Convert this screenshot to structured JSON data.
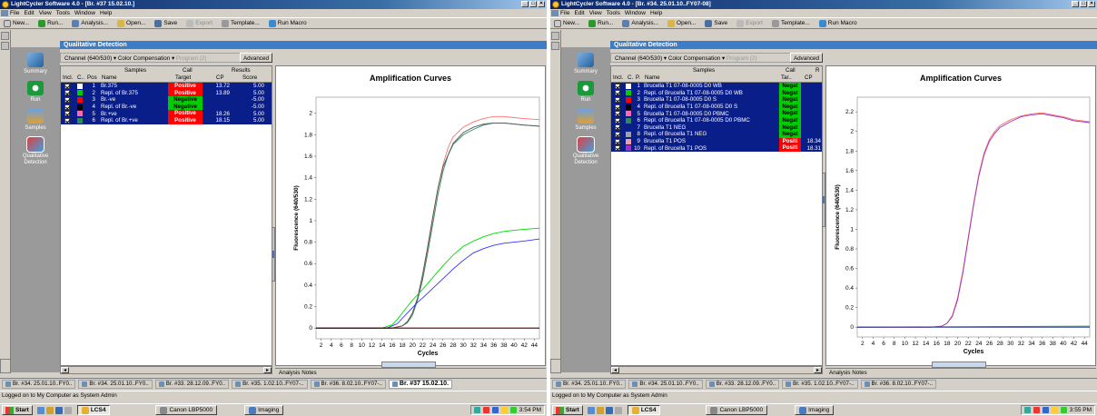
{
  "windows": [
    {
      "title": "LightCycler Software 4.0 - [Br. #37 15.02.10.]",
      "menu": [
        "File",
        "Edit",
        "View",
        "Tools",
        "Window",
        "Help"
      ],
      "toolbar": [
        {
          "icon": "new-icon",
          "label": "New..."
        },
        {
          "icon": "run-icon",
          "label": "Run..."
        },
        {
          "icon": "analysis-icon",
          "label": "Analysis..."
        },
        {
          "icon": "open-icon",
          "label": "Open..."
        },
        {
          "icon": "save-icon",
          "label": "Save"
        },
        {
          "icon": "export-icon",
          "label": "Export",
          "disabled": true
        },
        {
          "icon": "template-icon",
          "label": "Template..."
        },
        {
          "icon": "run-macro-icon",
          "label": "Run Macro"
        }
      ],
      "nav": [
        "Summary",
        "Run",
        "Samples",
        "Qualitative Detection"
      ],
      "page_title": "Qualitative Detection",
      "channel": "Channel (640/530)",
      "color_comp": "Color Compensation",
      "program": "Program (2)",
      "advanced": "Advanced",
      "headers": {
        "samples": "Samples",
        "call": "Call",
        "results": "Results",
        "incl": "Incl.",
        "c": "C..",
        "pos": "Pos",
        "name": "Name",
        "target": "Target",
        "cp": "CP",
        "score": "Score"
      },
      "rows": [
        {
          "pos": "1",
          "name": "Br.375",
          "color": "#ffffff",
          "call": "Positive",
          "cp": "13.72",
          "score": "5.00"
        },
        {
          "pos": "2",
          "name": "Repl. of Br.375",
          "color": "#00cc00",
          "call": "Positive",
          "cp": "13.89",
          "score": "5.00"
        },
        {
          "pos": "3",
          "name": "Br.-ve",
          "color": "#ff0000",
          "call": "Negative",
          "cp": "",
          "score": "-5.00"
        },
        {
          "pos": "4",
          "name": "Repl. of Br.-ve",
          "color": "#000000",
          "call": "Negative",
          "cp": "",
          "score": "-5.00"
        },
        {
          "pos": "5",
          "name": "Br.+ve",
          "color": "#ff69b4",
          "call": "Positive",
          "cp": "18.26",
          "score": "5.00"
        },
        {
          "pos": "6",
          "name": "Repl. of Br.+ve",
          "color": "#2e8b57",
          "call": "Positive",
          "cp": "18.15",
          "score": "5.00"
        }
      ],
      "chart_data": {
        "type": "line",
        "title": "Amplification Curves",
        "xlabel": "Cycles",
        "ylabel": "Fluorescence (640/530)",
        "xticks": [
          2,
          4,
          6,
          8,
          10,
          12,
          14,
          16,
          18,
          20,
          22,
          24,
          26,
          28,
          30,
          32,
          34,
          36,
          38,
          40,
          42,
          44
        ],
        "yticks": [
          0,
          0.2,
          0.4,
          0.6,
          0.8,
          1,
          1.2,
          1.4,
          1.6,
          1.8,
          2
        ],
        "xlim": [
          1,
          45
        ],
        "ylim": [
          -0.1,
          2.15
        ],
        "series": [
          {
            "color": "#ff7070",
            "x": [
              1,
              14,
              16,
              18,
              19,
              20,
              21,
              22,
              23,
              24,
              25,
              26,
              27,
              28,
              30,
              32,
              34,
              36,
              38,
              40,
              42,
              45
            ],
            "y": [
              0,
              0,
              0,
              0.02,
              0.06,
              0.14,
              0.28,
              0.48,
              0.74,
              1.02,
              1.3,
              1.52,
              1.68,
              1.78,
              1.87,
              1.92,
              1.95,
              1.97,
              1.97,
              1.96,
              1.95,
              1.94
            ]
          },
          {
            "color": "#2e8b57",
            "x": [
              1,
              14,
              16,
              18,
              19,
              20,
              21,
              22,
              23,
              24,
              25,
              26,
              27,
              28,
              30,
              32,
              34,
              36,
              38,
              40,
              42,
              45
            ],
            "y": [
              0,
              0,
              0,
              0.02,
              0.05,
              0.12,
              0.26,
              0.45,
              0.7,
              0.97,
              1.24,
              1.46,
              1.61,
              1.71,
              1.8,
              1.85,
              1.89,
              1.91,
              1.91,
              1.9,
              1.89,
              1.88
            ]
          },
          {
            "color": "#555555",
            "x": [
              1,
              14,
              16,
              18,
              19,
              20,
              21,
              22,
              23,
              24,
              25,
              26,
              28,
              30,
              32,
              34,
              36,
              38,
              40,
              42,
              45
            ],
            "y": [
              0,
              0,
              0,
              0.02,
              0.06,
              0.14,
              0.28,
              0.5,
              0.76,
              1.04,
              1.3,
              1.5,
              1.72,
              1.82,
              1.87,
              1.9,
              1.91,
              1.91,
              1.9,
              1.89,
              1.88
            ]
          },
          {
            "color": "#00dd00",
            "x": [
              1,
              14,
              16,
              17,
              18,
              19,
              20,
              21,
              22,
              24,
              26,
              28,
              30,
              32,
              34,
              36,
              38,
              40,
              42,
              45
            ],
            "y": [
              0,
              0,
              0.03,
              0.08,
              0.14,
              0.2,
              0.26,
              0.31,
              0.36,
              0.47,
              0.58,
              0.68,
              0.76,
              0.81,
              0.85,
              0.88,
              0.9,
              0.91,
              0.92,
              0.93
            ]
          },
          {
            "color": "#3333ff",
            "x": [
              1,
              15,
              17,
              18,
              19,
              20,
              21,
              22,
              24,
              26,
              28,
              30,
              32,
              34,
              36,
              38,
              40,
              42,
              45
            ],
            "y": [
              0,
              0,
              0.04,
              0.09,
              0.14,
              0.19,
              0.24,
              0.28,
              0.37,
              0.46,
              0.55,
              0.63,
              0.7,
              0.74,
              0.77,
              0.79,
              0.8,
              0.81,
              0.83
            ]
          },
          {
            "color": "#ff0000",
            "x": [
              1,
              45
            ],
            "y": [
              0,
              0
            ]
          },
          {
            "color": "#000000",
            "x": [
              1,
              45
            ],
            "y": [
              0,
              0
            ]
          }
        ]
      },
      "analysis_notes": "Analysis Notes",
      "tabs": [
        "Br. #34. 25.01.10..FY0..",
        "Br. #34. 25.01.10..FY0..",
        "Br. #33. 28.12.09..FY0..",
        "Br. #35. 1.02.10..FY07-..",
        "Br. #36. 8.02.10..FY07-..",
        "Br. #37 15.02.10."
      ],
      "status": "Logged on to My Computer as System Admin",
      "taskbar": {
        "start": "Start",
        "tasks": [
          "LCS4",
          "Canon LBP5000",
          "Imaging"
        ],
        "clock": "3:54 PM"
      }
    },
    {
      "title": "LightCycler Software 4.0 - [Br. #34. 25.01.10..FY07-08]",
      "menu": [
        "File",
        "Edit",
        "View",
        "Tools",
        "Window",
        "Help"
      ],
      "toolbar": [
        {
          "icon": "new-icon",
          "label": "New..."
        },
        {
          "icon": "run-icon",
          "label": "Run..."
        },
        {
          "icon": "analysis-icon",
          "label": "Analysis..."
        },
        {
          "icon": "open-icon",
          "label": "Open..."
        },
        {
          "icon": "save-icon",
          "label": "Save"
        },
        {
          "icon": "export-icon",
          "label": "Export",
          "disabled": true
        },
        {
          "icon": "template-icon",
          "label": "Template..."
        },
        {
          "icon": "run-macro-icon",
          "label": "Run Macro"
        }
      ],
      "nav": [
        "Summary",
        "Run",
        "Samples",
        "Qualitative Detection"
      ],
      "page_title": "Qualitative Detection",
      "channel": "Channel (640/530)",
      "color_comp": "Color Compensation",
      "program": "Program (2)",
      "advanced": "Advanced",
      "headers": {
        "samples": "Samples",
        "call": "Call",
        "results": "R",
        "incl": "Incl.",
        "c": "C.",
        "pos": "P.",
        "name": "Name",
        "target": "Tar..",
        "cp": "CP",
        "score": ""
      },
      "rows": [
        {
          "pos": "1",
          "name": "Brucella T1 07-08-0005 D0 WB",
          "color": "#ffffff",
          "call": "Negat",
          "cp": ""
        },
        {
          "pos": "2",
          "name": "Repl. of Brucella T1 07-08-0005 D0 WB",
          "color": "#00cc00",
          "call": "Negat",
          "cp": ""
        },
        {
          "pos": "3",
          "name": "Brucella T1 07-08-0005 D0 S",
          "color": "#ff0000",
          "call": "Negat",
          "cp": ""
        },
        {
          "pos": "4",
          "name": "Repl. of Brucella T1 07-08-0005 D0 S",
          "color": "#000000",
          "call": "Negat",
          "cp": ""
        },
        {
          "pos": "5",
          "name": "Brucella T1 07-08-0005 D0 PBMC",
          "color": "#ff69b4",
          "call": "Negat",
          "cp": ""
        },
        {
          "pos": "6",
          "name": "Repl. of Brucella T1 07-08-0005 D0 PBMC",
          "color": "#2e8b57",
          "call": "Negat",
          "cp": ""
        },
        {
          "pos": "7",
          "name": "Brucella T1 NEG",
          "color": "#0a1e8a",
          "call": "Negat",
          "cp": ""
        },
        {
          "pos": "8",
          "name": "Repl. of Brucella T1 NEG",
          "color": "#a0a0a0",
          "call": "Negat",
          "cp": ""
        },
        {
          "pos": "9",
          "name": "Brucella T1 POS",
          "color": "#e8a0a0",
          "call": "Positi",
          "cp": "18.34"
        },
        {
          "pos": "10",
          "name": "Repl. of Brucella T1 POS",
          "color": "#9932cc",
          "call": "Positi",
          "cp": "18.31"
        }
      ],
      "chart_data": {
        "type": "line",
        "title": "Amplification Curves",
        "xlabel": "Cycles",
        "ylabel": "Fluorescence (640/530)",
        "xticks": [
          2,
          4,
          6,
          8,
          10,
          12,
          14,
          16,
          18,
          20,
          22,
          24,
          26,
          28,
          30,
          32,
          34,
          36,
          38,
          40,
          42,
          44
        ],
        "yticks": [
          0,
          0.2,
          0.4,
          0.6,
          0.8,
          1,
          1.2,
          1.4,
          1.6,
          1.8,
          2,
          2.2
        ],
        "xlim": [
          1,
          45
        ],
        "ylim": [
          -0.1,
          2.35
        ],
        "series": [
          {
            "color": "#ff7070",
            "x": [
              1,
              15,
              17,
              18,
              19,
              20,
              21,
              22,
              23,
              24,
              25,
              26,
              27,
              28,
              30,
              32,
              34,
              36,
              38,
              40,
              42,
              45
            ],
            "y": [
              0,
              0,
              0.01,
              0.04,
              0.12,
              0.3,
              0.58,
              0.92,
              1.26,
              1.56,
              1.78,
              1.92,
              2.0,
              2.06,
              2.12,
              2.16,
              2.18,
              2.19,
              2.17,
              2.15,
              2.12,
              2.1
            ]
          },
          {
            "color": "#9932cc",
            "x": [
              1,
              15,
              17,
              18,
              19,
              20,
              21,
              22,
              23,
              24,
              25,
              26,
              27,
              28,
              30,
              32,
              34,
              36,
              38,
              40,
              42,
              45
            ],
            "y": [
              0,
              0,
              0.01,
              0.04,
              0.11,
              0.28,
              0.56,
              0.9,
              1.24,
              1.54,
              1.76,
              1.9,
              1.98,
              2.04,
              2.1,
              2.15,
              2.17,
              2.18,
              2.16,
              2.14,
              2.11,
              2.09
            ]
          },
          {
            "color": "#2e8b57",
            "x": [
              1,
              45
            ],
            "y": [
              0,
              0.01
            ]
          },
          {
            "color": "#0a1e8a",
            "x": [
              1,
              45
            ],
            "y": [
              0,
              0
            ]
          }
        ]
      },
      "analysis_notes": "Analysis Notes",
      "tabs": [
        "Br. #34. 25.01.10..FY0..",
        "Br. #34. 25.01.10..FY0..",
        "Br. #33. 28.12.09..FY0..",
        "Br. #35. 1.02.10..FY07-..",
        "Br. #36. 8.02.10..FY07-.."
      ],
      "status": "Logged on to My Computer as System Admin",
      "taskbar": {
        "start": "Start",
        "tasks": [
          "LCS4",
          "Canon LBP5000",
          "Imaging"
        ],
        "clock": "3:55 PM"
      }
    }
  ]
}
